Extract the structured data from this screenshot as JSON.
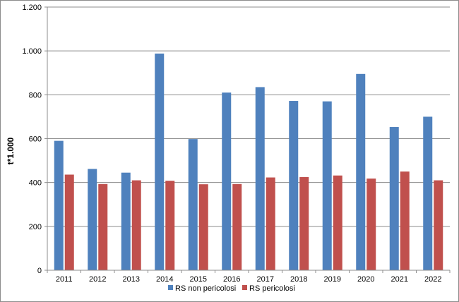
{
  "chart_data": {
    "type": "bar",
    "title": "",
    "xlabel": "",
    "ylabel": "t*1.000",
    "ylim": [
      0,
      1200
    ],
    "yticks": [
      0,
      200,
      400,
      600,
      800,
      1000,
      1200
    ],
    "ytick_labels": [
      "0",
      "200",
      "400",
      "600",
      "800",
      "1.000",
      "1.200"
    ],
    "grid": true,
    "legend_position": "bottom",
    "categories": [
      "2011",
      "2012",
      "2013",
      "2014",
      "2015",
      "2016",
      "2017",
      "2018",
      "2019",
      "2020",
      "2021",
      "2022"
    ],
    "series": [
      {
        "name": "RS non pericolosi",
        "color": "#4F81BD",
        "values": [
          590,
          462,
          445,
          988,
          598,
          810,
          835,
          772,
          770,
          895,
          653,
          700
        ]
      },
      {
        "name": "RS pericolosi",
        "color": "#C0504D",
        "values": [
          436,
          393,
          410,
          408,
          392,
          393,
          423,
          425,
          432,
          418,
          450,
          410
        ]
      }
    ]
  }
}
